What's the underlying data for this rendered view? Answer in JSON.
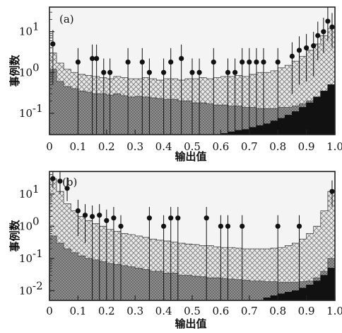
{
  "chart_data": [
    {
      "panel_label": "(a)",
      "type": "area",
      "xlabel": "输出值",
      "ylabel": "事例数",
      "xlim": [
        0,
        1
      ],
      "ylim": [
        0.03,
        40
      ],
      "log_y": true,
      "x_ticks": [
        "0",
        "0.1",
        "0.2",
        "0.3",
        "0.4",
        "0.5",
        "0.6",
        "0.7",
        "0.8",
        "0.9",
        "1.0"
      ],
      "y_ticks": [
        {
          "value": 10,
          "label": "10",
          "exp": "1"
        },
        {
          "value": 1,
          "label": "10",
          "exp": "0"
        },
        {
          "value": 0.1,
          "label": "10",
          "exp": "-1"
        }
      ],
      "bin_edges": [
        0,
        0.025,
        0.05,
        0.075,
        0.1,
        0.125,
        0.15,
        0.175,
        0.2,
        0.225,
        0.25,
        0.275,
        0.3,
        0.325,
        0.35,
        0.375,
        0.4,
        0.425,
        0.45,
        0.475,
        0.5,
        0.525,
        0.55,
        0.575,
        0.6,
        0.625,
        0.65,
        0.675,
        0.7,
        0.725,
        0.75,
        0.775,
        0.8,
        0.825,
        0.85,
        0.875,
        0.9,
        0.925,
        0.95,
        0.975,
        1.0
      ],
      "series": [
        {
          "style": "crosshatch-light",
          "values": [
            3.0,
            1.7,
            1.2,
            1.0,
            0.9,
            0.85,
            0.8,
            0.75,
            0.7,
            0.8,
            0.75,
            0.7,
            0.7,
            0.75,
            0.7,
            0.65,
            0.7,
            0.7,
            0.65,
            0.7,
            0.7,
            0.75,
            0.7,
            0.75,
            0.8,
            0.8,
            0.85,
            0.8,
            0.9,
            1.0,
            1.0,
            1.1,
            1.3,
            1.5,
            1.9,
            2.5,
            3.5,
            5.0,
            8.0,
            12.0
          ]
        },
        {
          "style": "dense-gray",
          "values": [
            1.2,
            0.6,
            0.45,
            0.4,
            0.35,
            0.33,
            0.3,
            0.3,
            0.28,
            0.3,
            0.27,
            0.25,
            0.26,
            0.25,
            0.24,
            0.23,
            0.22,
            0.22,
            0.2,
            0.2,
            0.18,
            0.18,
            0.17,
            0.16,
            0.16,
            0.15,
            0.15,
            0.14,
            0.14,
            0.13,
            0.13,
            0.13,
            0.14,
            0.14,
            0.15,
            0.17,
            0.2,
            0.25,
            0.35,
            0.5
          ]
        },
        {
          "style": "black",
          "values": [
            0,
            0,
            0,
            0,
            0,
            0,
            0,
            0,
            0,
            0,
            0,
            0,
            0,
            0,
            0,
            0,
            0,
            0,
            0,
            0,
            0,
            0,
            0,
            0,
            0.032,
            0.035,
            0.038,
            0.04,
            0.045,
            0.05,
            0.055,
            0.065,
            0.075,
            0.09,
            0.11,
            0.14,
            0.18,
            0.25,
            0.35,
            0.5
          ]
        }
      ],
      "points": [
        {
          "x": 0.012,
          "y": 5.0,
          "lo": 0.5
        },
        {
          "x": 0.1,
          "y": 1.8,
          "lo": 0
        },
        {
          "x": 0.15,
          "y": 2.2,
          "lo": 0
        },
        {
          "x": 0.165,
          "y": 2.2,
          "lo": 0
        },
        {
          "x": 0.19,
          "y": 1.0,
          "lo": 0
        },
        {
          "x": 0.212,
          "y": 1.0,
          "lo": 0
        },
        {
          "x": 0.275,
          "y": 1.8,
          "lo": 0
        },
        {
          "x": 0.325,
          "y": 1.8,
          "lo": 0
        },
        {
          "x": 0.35,
          "y": 1.0,
          "lo": 0
        },
        {
          "x": 0.4,
          "y": 1.0,
          "lo": 0
        },
        {
          "x": 0.425,
          "y": 1.8,
          "lo": 0
        },
        {
          "x": 0.462,
          "y": 2.2,
          "lo": 0
        },
        {
          "x": 0.5,
          "y": 1.0,
          "lo": 0
        },
        {
          "x": 0.525,
          "y": 1.0,
          "lo": 0
        },
        {
          "x": 0.575,
          "y": 1.8,
          "lo": 0
        },
        {
          "x": 0.625,
          "y": 1.0,
          "lo": 0
        },
        {
          "x": 0.65,
          "y": 1.0,
          "lo": 0
        },
        {
          "x": 0.675,
          "y": 1.8,
          "lo": 0
        },
        {
          "x": 0.7,
          "y": 1.8,
          "lo": 0
        },
        {
          "x": 0.725,
          "y": 1.8,
          "lo": 0
        },
        {
          "x": 0.75,
          "y": 1.8,
          "lo": 0
        },
        {
          "x": 0.8,
          "y": 1.8,
          "lo": 0
        },
        {
          "x": 0.85,
          "y": 2.5,
          "lo": 0.3
        },
        {
          "x": 0.875,
          "y": 3.5,
          "lo": 0.5
        },
        {
          "x": 0.9,
          "y": 4.0,
          "lo": 0.6
        },
        {
          "x": 0.925,
          "y": 4.5,
          "lo": 0.8
        },
        {
          "x": 0.94,
          "y": 8.0,
          "lo": 2.0
        },
        {
          "x": 0.96,
          "y": 10.0,
          "lo": 3.0
        },
        {
          "x": 0.975,
          "y": 18.0,
          "lo": 6.0
        },
        {
          "x": 0.99,
          "y": 13.0,
          "lo": 4.0
        }
      ]
    },
    {
      "panel_label": "(b)",
      "type": "area",
      "xlabel": "输出值",
      "ylabel": "事例数",
      "xlim": [
        0,
        1
      ],
      "ylim": [
        0.005,
        50
      ],
      "log_y": true,
      "x_ticks": [
        "0",
        "0.1",
        "0.2",
        "0.3",
        "0.4",
        "0.5",
        "0.6",
        "0.7",
        "0.8",
        "0.9",
        "1.0"
      ],
      "y_ticks": [
        {
          "value": 10,
          "label": "10",
          "exp": "1"
        },
        {
          "value": 1,
          "label": "10",
          "exp": "0"
        },
        {
          "value": 0.1,
          "label": "10",
          "exp": "-1"
        },
        {
          "value": 0.01,
          "label": "10",
          "exp": "-2"
        }
      ],
      "bin_edges": [
        0,
        0.025,
        0.05,
        0.075,
        0.1,
        0.125,
        0.15,
        0.175,
        0.2,
        0.225,
        0.25,
        0.275,
        0.3,
        0.325,
        0.35,
        0.375,
        0.4,
        0.425,
        0.45,
        0.475,
        0.5,
        0.525,
        0.55,
        0.575,
        0.6,
        0.625,
        0.65,
        0.675,
        0.7,
        0.725,
        0.75,
        0.775,
        0.8,
        0.825,
        0.85,
        0.875,
        0.9,
        0.925,
        0.95,
        0.975,
        1.0
      ],
      "series": [
        {
          "style": "crosshatch-light",
          "values": [
            30.0,
            12.0,
            5.0,
            3.0,
            2.0,
            1.5,
            1.2,
            1.0,
            0.8,
            0.7,
            0.6,
            0.55,
            0.5,
            0.45,
            0.4,
            0.37,
            0.35,
            0.32,
            0.3,
            0.28,
            0.27,
            0.25,
            0.25,
            0.23,
            0.22,
            0.22,
            0.21,
            0.2,
            0.2,
            0.2,
            0.2,
            0.21,
            0.22,
            0.25,
            0.3,
            0.4,
            0.6,
            1.0,
            3.0,
            12.0
          ]
        },
        {
          "style": "dense-gray",
          "values": [
            0.5,
            0.3,
            0.2,
            0.15,
            0.12,
            0.1,
            0.09,
            0.08,
            0.07,
            0.065,
            0.06,
            0.055,
            0.05,
            0.045,
            0.04,
            0.04,
            0.035,
            0.035,
            0.03,
            0.03,
            0.028,
            0.027,
            0.025,
            0.025,
            0.024,
            0.023,
            0.022,
            0.021,
            0.02,
            0.02,
            0.019,
            0.019,
            0.018,
            0.018,
            0.018,
            0.019,
            0.02,
            0.025,
            0.04,
            0.1
          ]
        },
        {
          "style": "black",
          "values": [
            0,
            0,
            0,
            0,
            0,
            0,
            0,
            0,
            0,
            0,
            0,
            0,
            0,
            0,
            0,
            0,
            0,
            0,
            0,
            0,
            0,
            0,
            0,
            0,
            0,
            0,
            0,
            0,
            0,
            0,
            0.006,
            0.007,
            0.008,
            0.009,
            0.01,
            0.012,
            0.015,
            0.02,
            0.03,
            0.05
          ]
        }
      ],
      "points": [
        {
          "x": 0.012,
          "y": 30.0,
          "lo": 15.0
        },
        {
          "x": 0.037,
          "y": 25.0,
          "lo": 10.0
        },
        {
          "x": 0.062,
          "y": 15.0,
          "lo": 6.0
        },
        {
          "x": 0.1,
          "y": 3.0,
          "lo": 0.5
        },
        {
          "x": 0.125,
          "y": 2.2,
          "lo": 0.3
        },
        {
          "x": 0.15,
          "y": 2.0,
          "lo": 0
        },
        {
          "x": 0.175,
          "y": 2.2,
          "lo": 0
        },
        {
          "x": 0.2,
          "y": 1.5,
          "lo": 0
        },
        {
          "x": 0.225,
          "y": 1.8,
          "lo": 0
        },
        {
          "x": 0.25,
          "y": 1.0,
          "lo": 0
        },
        {
          "x": 0.35,
          "y": 1.8,
          "lo": 0
        },
        {
          "x": 0.4,
          "y": 1.0,
          "lo": 0
        },
        {
          "x": 0.425,
          "y": 1.8,
          "lo": 0
        },
        {
          "x": 0.45,
          "y": 1.8,
          "lo": 0
        },
        {
          "x": 0.55,
          "y": 1.8,
          "lo": 0
        },
        {
          "x": 0.6,
          "y": 1.0,
          "lo": 0
        },
        {
          "x": 0.625,
          "y": 1.0,
          "lo": 0
        },
        {
          "x": 0.675,
          "y": 1.0,
          "lo": 0
        },
        {
          "x": 0.8,
          "y": 1.0,
          "lo": 0
        },
        {
          "x": 0.875,
          "y": 1.0,
          "lo": 0
        },
        {
          "x": 0.99,
          "y": 12.0,
          "lo": 4.0
        }
      ]
    }
  ]
}
